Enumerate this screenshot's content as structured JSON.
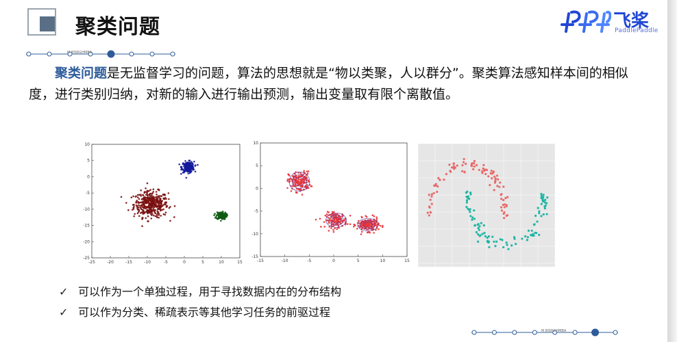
{
  "header": {
    "title": "聚类问题",
    "logo_cn": "飞桨",
    "logo_en": "PaddlePaddle"
  },
  "nav": {
    "dots_top": 8,
    "active_top": 4,
    "dots_bottom": 8,
    "active_bottom": 6,
    "tag": "M BISRGHMBA"
  },
  "body": {
    "highlight": "聚类问题",
    "text": "是无监督学习的问题，算法的思想就是“物以类聚，人以群分”。聚类算法感知样本间的相似度，进行类别归纳，对新的输入进行输出预测，输出变量取有限个离散值。"
  },
  "colors": {
    "highlight": "#2e5c9a",
    "brand": "#2147d6",
    "cluster_dark_red": "#7a1010",
    "cluster_blue": "#141a9c",
    "cluster_green": "#0f5a14",
    "point_red": "#e8353a",
    "ellipse": "#5b3fa8",
    "moon_red": "#e86a6a",
    "moon_teal": "#1fb5a4"
  },
  "chart_data": [
    {
      "type": "scatter",
      "x_ticks": [
        "-25",
        "-20",
        "-15",
        "-10",
        "-5",
        "0",
        "5",
        "10",
        "15"
      ],
      "y_ticks": [
        "10",
        "5",
        "0",
        "-5",
        "-10",
        "-15",
        "-20",
        "-25"
      ],
      "xlim": [
        -25,
        15
      ],
      "ylim": [
        -25,
        10
      ],
      "series": [
        {
          "color": "#7a1010",
          "center": [
            -9,
            -8.5
          ],
          "spread": [
            4.2,
            3.6
          ],
          "count": 420
        },
        {
          "color": "#141a9c",
          "center": [
            1,
            3
          ],
          "spread": [
            1.5,
            1.5
          ],
          "count": 220
        },
        {
          "color": "#0f5a14",
          "center": [
            10,
            -12
          ],
          "spread": [
            1.2,
            1.0
          ],
          "count": 160
        }
      ]
    },
    {
      "type": "scatter",
      "x_ticks": [
        "-15",
        "-10",
        "-5",
        "0",
        "5",
        "10",
        "15"
      ],
      "y_ticks": [
        "10",
        "5",
        "0",
        "-5",
        "-10",
        "-15"
      ],
      "xlim": [
        -15,
        15
      ],
      "ylim": [
        -15,
        10
      ],
      "series": [
        {
          "color": "#e8353a",
          "center": [
            -7,
            1.5
          ],
          "spread": [
            2.0,
            2.0
          ],
          "count": 170
        },
        {
          "color": "#e8353a",
          "center": [
            0.5,
            -7
          ],
          "spread": [
            2.0,
            1.5
          ],
          "count": 150
        },
        {
          "color": "#e8353a",
          "center": [
            7,
            -8
          ],
          "spread": [
            2.0,
            1.3
          ],
          "count": 190
        }
      ]
    },
    {
      "type": "scatter",
      "grid": true,
      "series": [
        {
          "color": "#e86a6a",
          "shape": "upper-moon",
          "count": 100
        },
        {
          "color": "#1fb5a4",
          "shape": "lower-moon",
          "count": 100
        }
      ]
    }
  ],
  "bullets": [
    "可以作为一个单独过程，用于寻找数据内在的分布结构",
    "可以作为分类、稀疏表示等其他学习任务的前驱过程"
  ],
  "check_glyph": "✓"
}
